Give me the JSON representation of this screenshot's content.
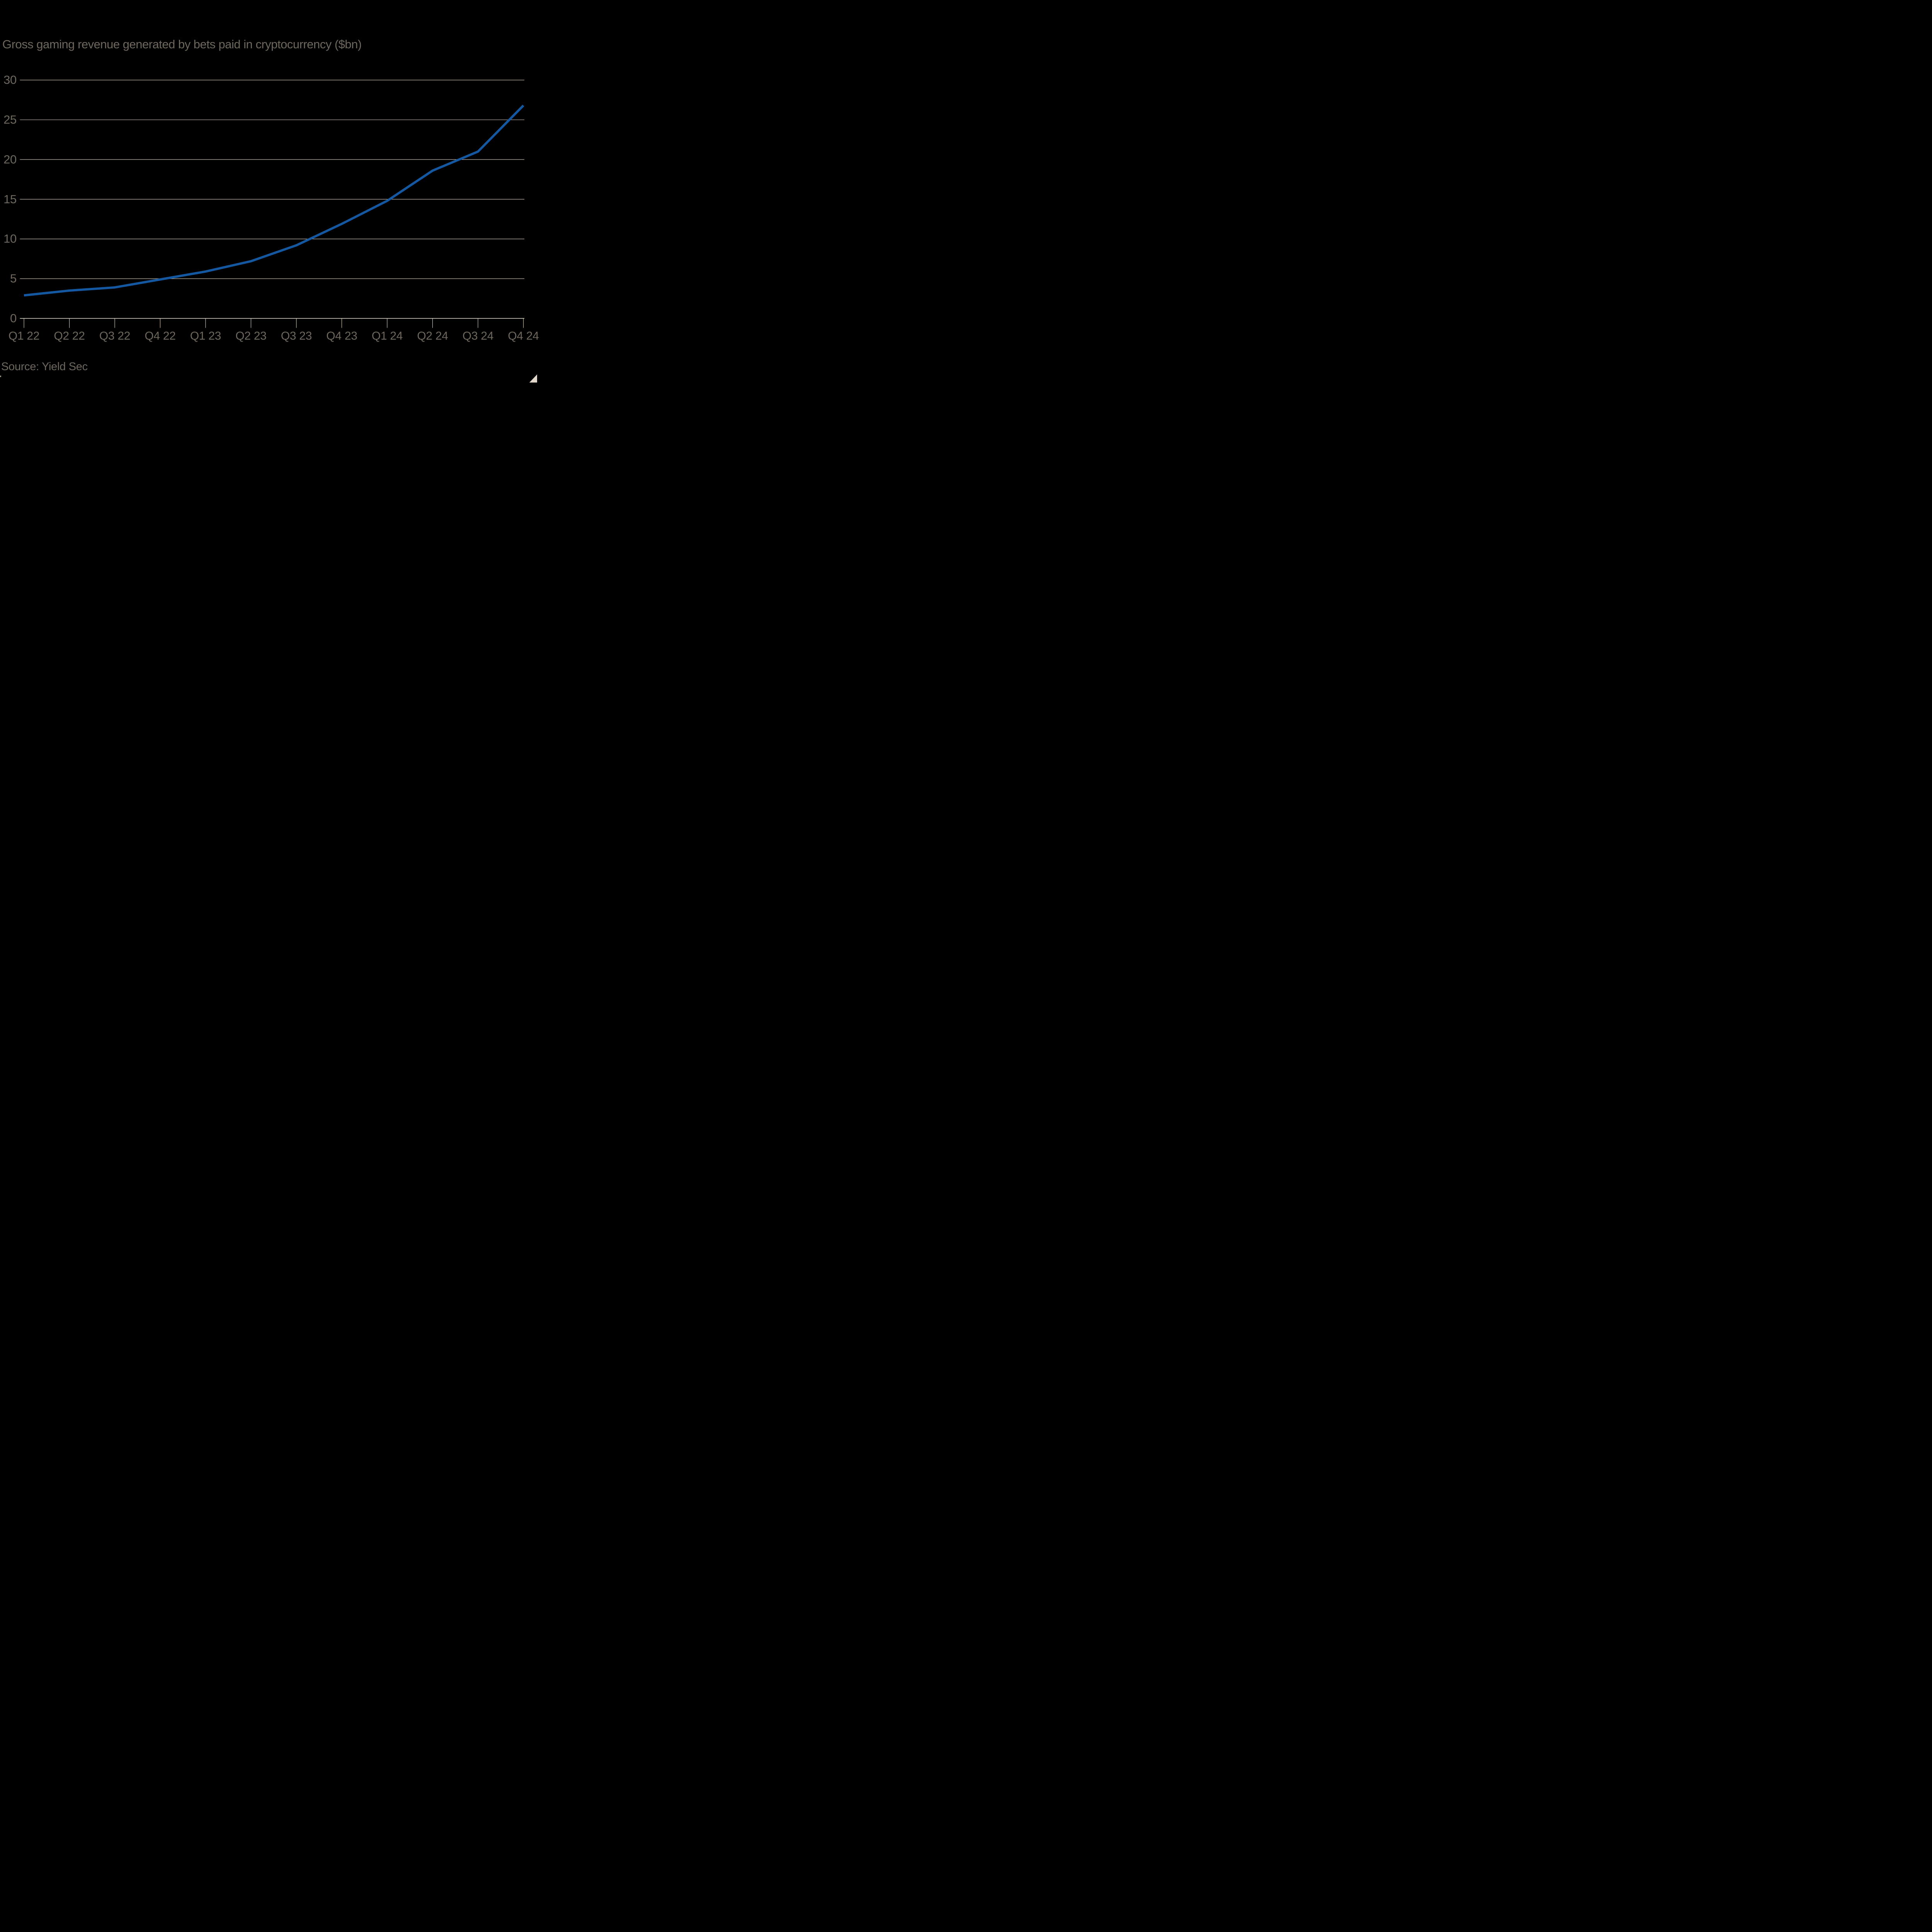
{
  "chart": {
    "title": "Gross gaming revenue generated by bets paid in cryptocurrency ($bn)",
    "source": "Source: Yield Sec"
  },
  "chart_data": {
    "type": "line",
    "title": "Gross gaming revenue generated by bets paid in cryptocurrency ($bn)",
    "categories": [
      "Q1 22",
      "Q2 22",
      "Q3 22",
      "Q4 22",
      "Q1 23",
      "Q2 23",
      "Q3 23",
      "Q4 23",
      "Q1 24",
      "Q2 24",
      "Q3 24",
      "Q4 24"
    ],
    "values": [
      2.9,
      3.5,
      3.9,
      4.9,
      5.9,
      7.2,
      9.2,
      11.9,
      14.8,
      18.6,
      21.0,
      26.8
    ],
    "xlabel": "",
    "ylabel": "",
    "ylim": [
      0,
      30
    ],
    "yticks": [
      0,
      5,
      10,
      15,
      20,
      25,
      30
    ],
    "grid": "horizontal-only",
    "legend": "none",
    "source": "Source: Yield Sec"
  },
  "colors": {
    "background": "#000000",
    "line": "#1458a2",
    "text": "#6e675e",
    "gridline": "#d9d1c2",
    "axis_baseline": "#e9e0d0",
    "tick": "#e0d7c6",
    "corner_triangle": "#e2d8c9"
  }
}
